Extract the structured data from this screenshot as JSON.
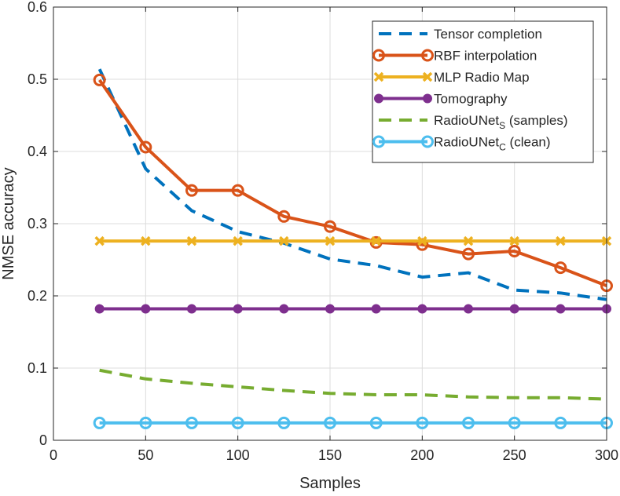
{
  "chart_data": {
    "type": "line",
    "title": "",
    "xlabel": "Samples",
    "ylabel": "NMSE accuracy",
    "xlim": [
      0,
      300
    ],
    "ylim": [
      0,
      0.6
    ],
    "xticks": [
      0,
      50,
      100,
      150,
      200,
      250,
      300
    ],
    "yticks": [
      0,
      0.1,
      0.2,
      0.3,
      0.4,
      0.5,
      0.6
    ],
    "xtick_labels": [
      "0",
      "50",
      "100",
      "150",
      "200",
      "250",
      "300"
    ],
    "ytick_labels": [
      "0",
      "0.1",
      "0.2",
      "0.3",
      "0.4",
      "0.5",
      "0.6"
    ],
    "grid": true,
    "legend_position": "top-right",
    "x": [
      25,
      50,
      75,
      100,
      125,
      150,
      175,
      200,
      225,
      250,
      275,
      300
    ],
    "series": [
      {
        "name": "Tensor completion",
        "name_sub": "",
        "name_suffix": "",
        "color": "#0072BD",
        "style": "dashed",
        "marker": "none",
        "values": [
          0.514,
          0.376,
          0.318,
          0.289,
          0.273,
          0.251,
          0.242,
          0.226,
          0.232,
          0.208,
          0.204,
          0.195
        ]
      },
      {
        "name": "RBF interpolation",
        "name_sub": "",
        "name_suffix": "",
        "color": "#D95319",
        "style": "solid",
        "marker": "circle",
        "values": [
          0.499,
          0.406,
          0.346,
          0.346,
          0.31,
          0.296,
          0.274,
          0.271,
          0.258,
          0.262,
          0.239,
          0.214
        ]
      },
      {
        "name": "MLP Radio Map",
        "name_sub": "",
        "name_suffix": "",
        "color": "#EDB120",
        "style": "solid",
        "marker": "x",
        "values": [
          0.276,
          0.276,
          0.276,
          0.276,
          0.276,
          0.276,
          0.276,
          0.276,
          0.276,
          0.276,
          0.276,
          0.276
        ]
      },
      {
        "name": "Tomography",
        "name_sub": "",
        "name_suffix": "",
        "color": "#7E2F8E",
        "style": "solid",
        "marker": "dot",
        "values": [
          0.182,
          0.182,
          0.182,
          0.182,
          0.182,
          0.182,
          0.182,
          0.182,
          0.182,
          0.182,
          0.182,
          0.182
        ]
      },
      {
        "name": "RadioUNet",
        "name_sub": "S",
        "name_suffix": " (samples)",
        "color": "#77AC30",
        "style": "dashed",
        "marker": "none",
        "values": [
          0.097,
          0.085,
          0.079,
          0.074,
          0.069,
          0.065,
          0.063,
          0.063,
          0.06,
          0.059,
          0.059,
          0.057
        ]
      },
      {
        "name": "RadioUNet",
        "name_sub": "C",
        "name_suffix": " (clean)",
        "color": "#4DBEEE",
        "style": "solid",
        "marker": "circle",
        "values": [
          0.024,
          0.024,
          0.024,
          0.024,
          0.024,
          0.024,
          0.024,
          0.024,
          0.024,
          0.024,
          0.024,
          0.024
        ]
      }
    ]
  }
}
